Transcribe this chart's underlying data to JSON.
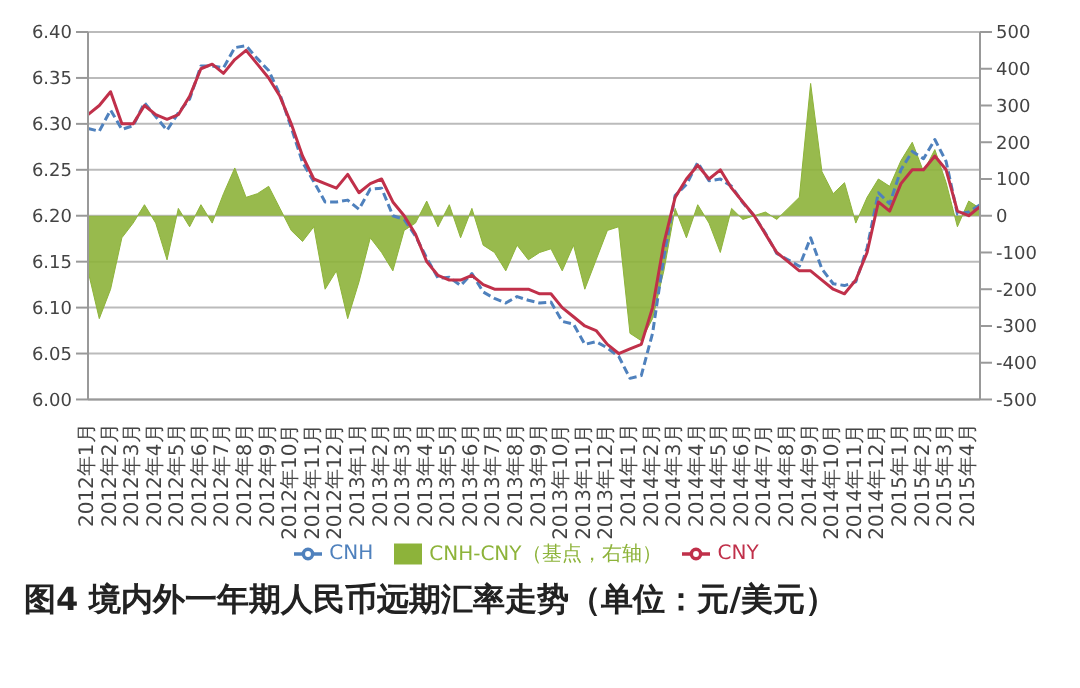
{
  "chart_data": {
    "type": "line",
    "title": "图4 境内外一年期人民币远期汇率走势（单位：元/美元）",
    "categories": [
      "2012年1月",
      null,
      "2012年2月",
      null,
      "2012年3月",
      null,
      "2012年4月",
      null,
      "2012年5月",
      null,
      "2012年6月",
      null,
      "2012年7月",
      null,
      "2012年8月",
      null,
      "2012年9月",
      null,
      "2012年10月",
      null,
      "2012年11月",
      null,
      "2012年12月",
      null,
      "2013年1月",
      null,
      "2013年2月",
      null,
      "2013年3月",
      null,
      "2013年4月",
      null,
      "2013年5月",
      null,
      "2013年6月",
      null,
      "2013年7月",
      null,
      "2013年8月",
      null,
      "2013年9月",
      null,
      "2013年10月",
      null,
      "2013年11月",
      null,
      "2013年12月",
      null,
      "2014年1月",
      null,
      "2014年2月",
      null,
      "2014年3月",
      null,
      "2014年4月",
      null,
      "2014年5月",
      null,
      "2014年6月",
      null,
      "2014年7月",
      null,
      "2014年8月",
      null,
      "2014年9月",
      null,
      "2014年10月",
      null,
      "2014年11月",
      null,
      "2014年12月",
      null,
      "2015年1月",
      null,
      "2015年2月",
      null,
      "2015年3月",
      null,
      "2015年4月",
      null
    ],
    "series": [
      {
        "name": "CNH-CNY（基点，右轴）",
        "type": "area",
        "axis": "y2",
        "color": "#8db33a",
        "values": [
          -150,
          -280,
          -200,
          -60,
          -20,
          30,
          -20,
          -120,
          20,
          -30,
          30,
          -20,
          60,
          130,
          50,
          60,
          80,
          20,
          -40,
          -70,
          -30,
          -200,
          -150,
          -280,
          -180,
          -60,
          -100,
          -150,
          -40,
          -20,
          40,
          -30,
          30,
          -60,
          20,
          -80,
          -100,
          -150,
          -80,
          -120,
          -100,
          -90,
          -150,
          -80,
          -200,
          -120,
          -40,
          -30,
          -320,
          -340,
          -280,
          -150,
          20,
          -60,
          30,
          -20,
          -100,
          20,
          -10,
          0,
          10,
          -10,
          20,
          50,
          360,
          120,
          60,
          90,
          -20,
          50,
          100,
          80,
          150,
          200,
          120,
          180,
          90,
          -30,
          40,
          20
        ]
      },
      {
        "name": "CNH",
        "line_style": "dashed",
        "color": "#4f81bd",
        "values": [
          6.295,
          6.292,
          6.315,
          6.294,
          6.298,
          6.323,
          6.308,
          6.293,
          6.312,
          6.327,
          6.363,
          6.363,
          6.361,
          6.383,
          6.385,
          6.371,
          6.358,
          6.332,
          6.296,
          6.258,
          6.237,
          6.215,
          6.215,
          6.217,
          6.207,
          6.229,
          6.23,
          6.2,
          6.196,
          6.178,
          6.154,
          6.132,
          6.133,
          6.124,
          6.137,
          6.117,
          6.11,
          6.105,
          6.112,
          6.108,
          6.105,
          6.106,
          6.085,
          6.082,
          6.06,
          6.063,
          6.056,
          6.047,
          6.023,
          6.026,
          6.072,
          6.155,
          6.222,
          6.234,
          6.258,
          6.238,
          6.24,
          6.232,
          6.214,
          6.2,
          6.181,
          6.159,
          6.152,
          6.145,
          6.176,
          6.142,
          6.126,
          6.124,
          6.128,
          6.165,
          6.225,
          6.213,
          6.25,
          6.27,
          6.262,
          6.283,
          6.259,
          6.202,
          6.204,
          6.212
        ]
      },
      {
        "name": "CNY",
        "line_style": "solid",
        "color": "#c0304a",
        "values": [
          6.31,
          6.32,
          6.335,
          6.3,
          6.3,
          6.32,
          6.31,
          6.305,
          6.31,
          6.33,
          6.36,
          6.365,
          6.355,
          6.37,
          6.38,
          6.365,
          6.35,
          6.33,
          6.3,
          6.265,
          6.24,
          6.235,
          6.23,
          6.245,
          6.225,
          6.235,
          6.24,
          6.215,
          6.2,
          6.18,
          6.15,
          6.135,
          6.13,
          6.13,
          6.135,
          6.125,
          6.12,
          6.12,
          6.12,
          6.12,
          6.115,
          6.115,
          6.1,
          6.09,
          6.08,
          6.075,
          6.06,
          6.05,
          6.055,
          6.06,
          6.1,
          6.17,
          6.22,
          6.24,
          6.255,
          6.24,
          6.25,
          6.23,
          6.215,
          6.2,
          6.18,
          6.16,
          6.15,
          6.14,
          6.14,
          6.13,
          6.12,
          6.115,
          6.13,
          6.16,
          6.215,
          6.205,
          6.235,
          6.25,
          6.25,
          6.265,
          6.25,
          6.205,
          6.2,
          6.21
        ]
      }
    ],
    "ylim": [
      6.0,
      6.4
    ],
    "yticks": [
      {
        "value": 6.0,
        "label": "6.00"
      },
      {
        "value": 6.05,
        "label": "6.05"
      },
      {
        "value": 6.1,
        "label": "6.10"
      },
      {
        "value": 6.15,
        "label": "6.15"
      },
      {
        "value": 6.2,
        "label": "6.20"
      },
      {
        "value": 6.25,
        "label": "6.25"
      },
      {
        "value": 6.3,
        "label": "6.30"
      },
      {
        "value": 6.35,
        "label": "6.35"
      },
      {
        "value": 6.4,
        "label": "6.40"
      }
    ],
    "y2lim": [
      -500,
      500
    ],
    "y2ticks": [
      -500,
      -400,
      -300,
      -200,
      -100,
      0,
      100,
      200,
      300,
      400,
      500
    ],
    "grid": "y",
    "legend": "bottom",
    "marker": "none"
  }
}
